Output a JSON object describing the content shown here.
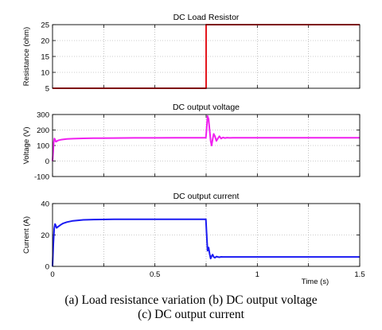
{
  "chart_data": [
    {
      "type": "line",
      "title": "DC Load Resistor",
      "xlabel": "",
      "ylabel": "Resistance (ohm)",
      "xlim": [
        0,
        1.5
      ],
      "ylim": [
        5,
        25
      ],
      "yticks": [
        5,
        10,
        15,
        20,
        25
      ],
      "yticklabels": [
        "5",
        "10",
        "15",
        "20",
        "25"
      ],
      "grid": true,
      "color": "#e4171e",
      "series": [
        {
          "x": [
            0,
            0.75,
            0.75,
            1.5
          ],
          "y": [
            5,
            5,
            25,
            25
          ]
        }
      ]
    },
    {
      "type": "line",
      "title": "DC output voltage",
      "xlabel": "",
      "ylabel": "Voltage (V)",
      "xlim": [
        0,
        1.5
      ],
      "ylim": [
        -100,
        300
      ],
      "yticks": [
        -100,
        0,
        100,
        200,
        300
      ],
      "yticklabels": [
        "-100",
        "0",
        "100",
        "200",
        "300"
      ],
      "grid": true,
      "color": "#f020f0",
      "series": [
        {
          "x": [
            0,
            0.003,
            0.006,
            0.009,
            0.012,
            0.016,
            0.02,
            0.025,
            0.03,
            0.04,
            0.05,
            0.07,
            0.1,
            0.15,
            0.2,
            0.3,
            0.4,
            0.5,
            0.6,
            0.7,
            0.749,
            0.752,
            0.757,
            0.762,
            0.767,
            0.772,
            0.777,
            0.782,
            0.787,
            0.793,
            0.8,
            0.807,
            0.815,
            0.823,
            0.832,
            0.842,
            0.852,
            0.865,
            0.88,
            0.9,
            0.95,
            1.0,
            1.1,
            1.2,
            1.3,
            1.4,
            1.5
          ],
          "y": [
            0,
            60,
            120,
            145,
            140,
            125,
            126,
            132,
            134,
            137,
            139,
            142,
            144,
            146,
            147,
            148,
            149,
            149,
            150,
            150,
            150,
            200,
            290,
            270,
            200,
            130,
            100,
            140,
            175,
            160,
            130,
            145,
            160,
            145,
            152,
            148,
            151,
            149,
            150,
            150,
            150,
            150,
            150,
            150,
            150,
            150,
            150
          ]
        }
      ]
    },
    {
      "type": "line",
      "title": "DC output current",
      "xlabel": "Time (s)",
      "ylabel": "Current (A)",
      "xlim": [
        0,
        1.5
      ],
      "ylim": [
        0,
        40
      ],
      "yticks": [
        0,
        20,
        40
      ],
      "yticklabels": [
        "0",
        "20",
        "40"
      ],
      "xticks": [
        0,
        0.5,
        1,
        1.5
      ],
      "xticklabels": [
        "0",
        "0.5",
        "1",
        "1.5"
      ],
      "grid": true,
      "color": "#1b1bf2",
      "series": [
        {
          "x": [
            0,
            0.004,
            0.008,
            0.012,
            0.016,
            0.02,
            0.025,
            0.03,
            0.04,
            0.05,
            0.07,
            0.1,
            0.15,
            0.2,
            0.3,
            0.4,
            0.5,
            0.6,
            0.7,
            0.749,
            0.752,
            0.757,
            0.762,
            0.767,
            0.772,
            0.777,
            0.782,
            0.787,
            0.793,
            0.8,
            0.807,
            0.815,
            0.823,
            0.832,
            0.842,
            0.855,
            0.87,
            0.9,
            1.0,
            1.2,
            1.5
          ],
          "y": [
            0,
            14,
            24,
            27,
            26,
            24.5,
            25,
            25.5,
            26.5,
            27.3,
            28.2,
            29,
            29.6,
            29.8,
            30,
            30,
            30,
            30,
            30,
            30,
            22,
            10,
            12,
            8,
            5,
            6.5,
            7.5,
            6,
            5.5,
            6.3,
            6,
            5.8,
            6.1,
            6,
            6,
            6,
            6,
            6,
            6,
            6,
            6
          ]
        }
      ]
    }
  ],
  "caption": {
    "line1": "(a) Load resistance variation (b) DC output voltage",
    "line2": "(c) DC output current"
  }
}
